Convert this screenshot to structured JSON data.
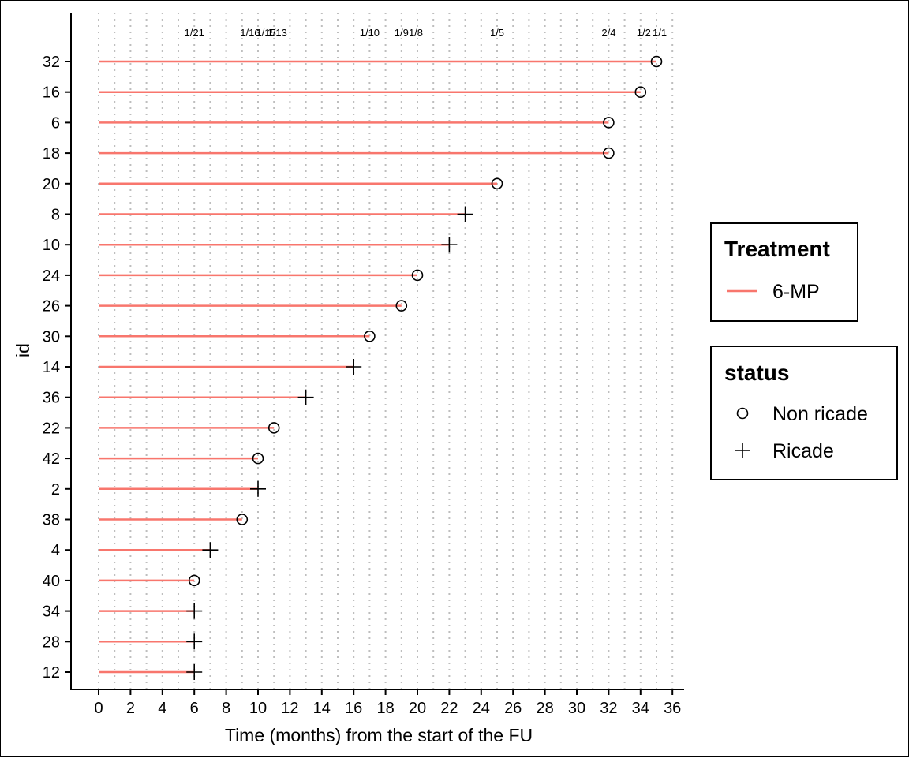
{
  "chart_data": {
    "type": "swimmer",
    "xlabel": "Time (months) from the start of the FU",
    "ylabel": "id",
    "xlim": [
      0,
      36
    ],
    "x_ticks": [
      0,
      2,
      4,
      6,
      8,
      10,
      12,
      14,
      16,
      18,
      20,
      22,
      24,
      26,
      28,
      30,
      32,
      34,
      36
    ],
    "grid": "vertical dotted",
    "colors": {
      "treatment_line": "#F8766D",
      "marker": "#000000",
      "grid": "#BEBEBE"
    },
    "legends": {
      "treatment": {
        "title": "Treatment",
        "items": [
          "6-MP"
        ]
      },
      "status": {
        "title": "status",
        "items": [
          "Non ricade",
          "Ricade"
        ]
      }
    },
    "risk_labels": [
      {
        "x": 6,
        "text": "1/21"
      },
      {
        "x": 9.5,
        "text": "1/16"
      },
      {
        "x": 10.5,
        "text": "1/15"
      },
      {
        "x": 11.2,
        "text": "1/13"
      },
      {
        "x": 17,
        "text": "1/10"
      },
      {
        "x": 19,
        "text": "1/9"
      },
      {
        "x": 19.9,
        "text": "1/8"
      },
      {
        "x": 25,
        "text": "1/5"
      },
      {
        "x": 32,
        "text": "2/4"
      },
      {
        "x": 34.2,
        "text": "1/2"
      },
      {
        "x": 35.2,
        "text": "1/1"
      }
    ],
    "series": [
      {
        "name": "6-MP",
        "rows": [
          {
            "id": "32",
            "time": 35,
            "status": "Non ricade"
          },
          {
            "id": "16",
            "time": 34,
            "status": "Non ricade"
          },
          {
            "id": "6",
            "time": 32,
            "status": "Non ricade"
          },
          {
            "id": "18",
            "time": 32,
            "status": "Non ricade"
          },
          {
            "id": "20",
            "time": 25,
            "status": "Non ricade"
          },
          {
            "id": "8",
            "time": 23,
            "status": "Ricade"
          },
          {
            "id": "10",
            "time": 22,
            "status": "Ricade"
          },
          {
            "id": "24",
            "time": 20,
            "status": "Non ricade"
          },
          {
            "id": "26",
            "time": 19,
            "status": "Non ricade"
          },
          {
            "id": "30",
            "time": 17,
            "status": "Non ricade"
          },
          {
            "id": "14",
            "time": 16,
            "status": "Ricade"
          },
          {
            "id": "36",
            "time": 13,
            "status": "Ricade"
          },
          {
            "id": "22",
            "time": 11,
            "status": "Non ricade"
          },
          {
            "id": "42",
            "time": 10,
            "status": "Non ricade"
          },
          {
            "id": "2",
            "time": 10,
            "status": "Ricade"
          },
          {
            "id": "38",
            "time": 9,
            "status": "Non ricade"
          },
          {
            "id": "4",
            "time": 7,
            "status": "Ricade"
          },
          {
            "id": "40",
            "time": 6,
            "status": "Non ricade"
          },
          {
            "id": "34",
            "time": 6,
            "status": "Ricade"
          },
          {
            "id": "28",
            "time": 6,
            "status": "Ricade"
          },
          {
            "id": "12",
            "time": 6,
            "status": "Ricade"
          }
        ]
      }
    ]
  }
}
